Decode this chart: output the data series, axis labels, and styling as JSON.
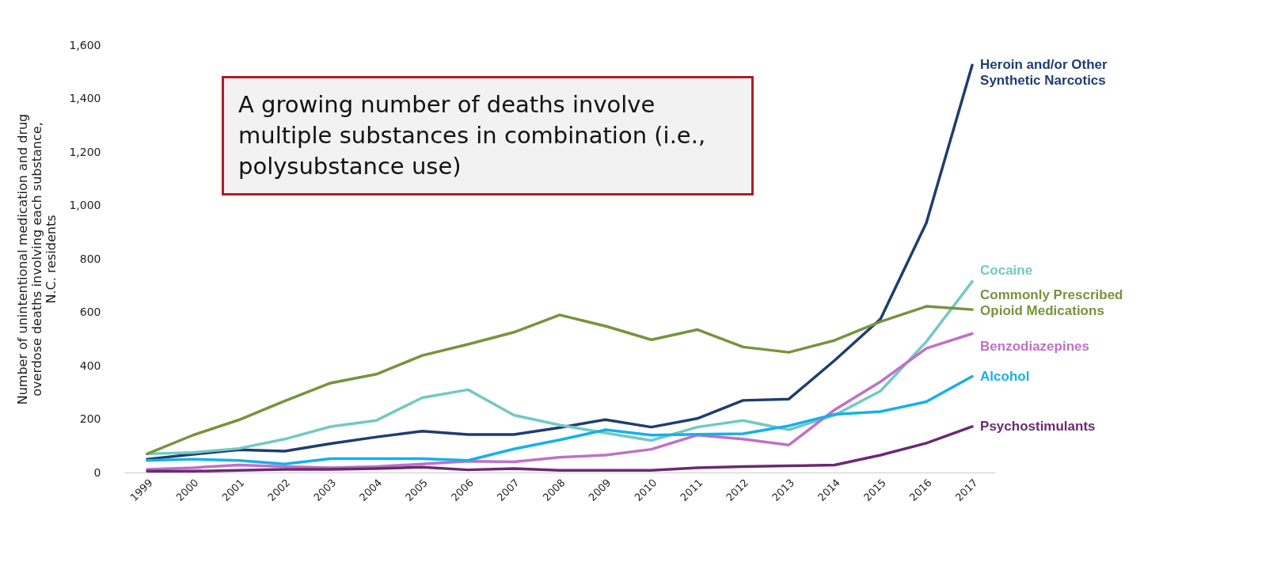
{
  "chart_data": {
    "type": "line",
    "ylabel": "Number of unintentional medication and drug overdose deaths involving each substance, N.C. residents",
    "categories": [
      "1999",
      "2000",
      "2001",
      "2002",
      "2003",
      "2004",
      "2005",
      "2006",
      "2007",
      "2008",
      "2009",
      "2010",
      "2011",
      "2012",
      "2013",
      "2014",
      "2015",
      "2016",
      "2017"
    ],
    "ylim": [
      0,
      1600
    ],
    "yticks": [
      {
        "value": 0,
        "label": "0"
      },
      {
        "value": 200,
        "label": "200"
      },
      {
        "value": 400,
        "label": "400"
      },
      {
        "value": 600,
        "label": "600"
      },
      {
        "value": 800,
        "label": "800"
      },
      {
        "value": 1000,
        "label": "1,000"
      },
      {
        "value": 1200,
        "label": "1,200"
      },
      {
        "value": 1400,
        "label": "1,400"
      },
      {
        "value": 1600,
        "label": "1,600"
      }
    ],
    "grid": false,
    "legend": false,
    "line_style": "solid",
    "annotations": [
      "A growing number of deaths involve multiple substances in combination (i.e., polysubstance use)"
    ],
    "series": [
      {
        "name": "Heroin and/or Other Synthetic Narcotics",
        "color": "#1f3d6e",
        "values": [
          50,
          68,
          85,
          80,
          108,
          133,
          155,
          142,
          142,
          168,
          198,
          170,
          202,
          270,
          275,
          420,
          575,
          935,
          1525
        ]
      },
      {
        "name": "Cocaine",
        "color": "#72c9c3",
        "values": [
          70,
          75,
          90,
          125,
          172,
          195,
          280,
          310,
          215,
          178,
          148,
          120,
          170,
          195,
          160,
          215,
          305,
          490,
          715
        ]
      },
      {
        "name": "Commonly Prescribed Opioid Medications",
        "color": "#77933c",
        "values": [
          70,
          140,
          197,
          268,
          335,
          368,
          438,
          480,
          525,
          590,
          548,
          497,
          535,
          470,
          450,
          495,
          565,
          622,
          610
        ]
      },
      {
        "name": "Benzodiazepines",
        "color": "#c070c8",
        "values": [
          12,
          18,
          28,
          22,
          18,
          22,
          32,
          42,
          40,
          57,
          65,
          87,
          140,
          125,
          103,
          235,
          340,
          465,
          520
        ]
      },
      {
        "name": "Alcohol",
        "color": "#16b0e8",
        "values": [
          45,
          50,
          45,
          32,
          52,
          52,
          52,
          45,
          88,
          122,
          160,
          140,
          143,
          145,
          175,
          218,
          228,
          265,
          360
        ]
      },
      {
        "name": "Psychostimulants",
        "color": "#6a2a72",
        "values": [
          5,
          5,
          8,
          12,
          12,
          15,
          20,
          10,
          15,
          8,
          8,
          8,
          18,
          22,
          25,
          28,
          65,
          110,
          172
        ]
      }
    ]
  }
}
